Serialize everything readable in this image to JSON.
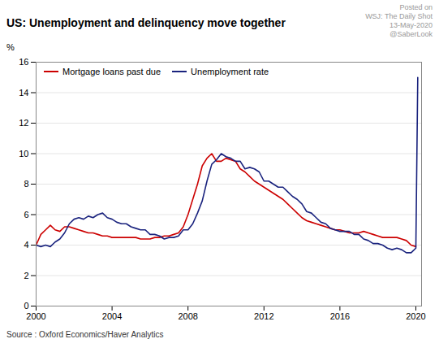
{
  "chart_data": {
    "type": "line",
    "title": "US: Unemployment and delinquency move together",
    "ylabel": "%",
    "source": "Source : Oxford Economics/Haver Analytics",
    "annotations": [
      "Posted on",
      "WSJ: The Daily Shot",
      "13-May-2020",
      "@SaberLook"
    ],
    "xlim": [
      2000,
      2020.3
    ],
    "xticks": [
      2000,
      2004,
      2008,
      2012,
      2016,
      2020
    ],
    "ylim": [
      0,
      16
    ],
    "yticks": [
      0,
      2,
      4,
      6,
      8,
      10,
      12,
      14,
      16
    ],
    "grid": true,
    "legend": "upper left",
    "series": [
      {
        "name": "Mortgage loans past due",
        "color": "#cc0000",
        "x": [
          2000.0,
          2000.25,
          2000.5,
          2000.75,
          2001.0,
          2001.25,
          2001.5,
          2001.75,
          2002.0,
          2002.25,
          2002.5,
          2002.75,
          2003.0,
          2003.25,
          2003.5,
          2003.75,
          2004.0,
          2004.25,
          2004.5,
          2004.75,
          2005.0,
          2005.25,
          2005.5,
          2005.75,
          2006.0,
          2006.25,
          2006.5,
          2006.75,
          2007.0,
          2007.25,
          2007.5,
          2007.75,
          2008.0,
          2008.25,
          2008.5,
          2008.75,
          2009.0,
          2009.25,
          2009.5,
          2009.75,
          2010.0,
          2010.25,
          2010.5,
          2010.75,
          2011.0,
          2011.25,
          2011.5,
          2011.75,
          2012.0,
          2012.25,
          2012.5,
          2012.75,
          2013.0,
          2013.25,
          2013.5,
          2013.75,
          2014.0,
          2014.25,
          2014.5,
          2014.75,
          2015.0,
          2015.25,
          2015.5,
          2015.75,
          2016.0,
          2016.25,
          2016.5,
          2016.75,
          2017.0,
          2017.25,
          2017.5,
          2017.75,
          2018.0,
          2018.25,
          2018.5,
          2018.75,
          2019.0,
          2019.25,
          2019.5,
          2019.75,
          2020.0
        ],
        "values": [
          4.0,
          4.7,
          5.0,
          5.3,
          5.0,
          4.9,
          5.2,
          5.2,
          5.1,
          5.0,
          4.9,
          4.8,
          4.8,
          4.7,
          4.6,
          4.6,
          4.5,
          4.5,
          4.5,
          4.5,
          4.5,
          4.5,
          4.4,
          4.4,
          4.4,
          4.5,
          4.5,
          4.6,
          4.6,
          4.7,
          4.8,
          5.2,
          6.0,
          7.0,
          8.0,
          9.2,
          9.7,
          10.0,
          9.5,
          9.5,
          9.7,
          9.6,
          9.5,
          9.0,
          8.8,
          8.5,
          8.2,
          8.0,
          7.8,
          7.6,
          7.4,
          7.2,
          7.0,
          6.7,
          6.4,
          6.1,
          5.8,
          5.6,
          5.5,
          5.4,
          5.3,
          5.2,
          5.1,
          5.0,
          5.0,
          4.9,
          4.8,
          4.8,
          4.8,
          4.9,
          4.8,
          4.7,
          4.6,
          4.5,
          4.5,
          4.5,
          4.5,
          4.4,
          4.3,
          4.0,
          3.9
        ]
      },
      {
        "name": "Unemployment rate",
        "color": "#1a237e",
        "x": [
          2000.0,
          2000.25,
          2000.5,
          2000.75,
          2001.0,
          2001.25,
          2001.5,
          2001.75,
          2002.0,
          2002.25,
          2002.5,
          2002.75,
          2003.0,
          2003.25,
          2003.5,
          2003.75,
          2004.0,
          2004.25,
          2004.5,
          2004.75,
          2005.0,
          2005.25,
          2005.5,
          2005.75,
          2006.0,
          2006.25,
          2006.5,
          2006.75,
          2007.0,
          2007.25,
          2007.5,
          2007.75,
          2008.0,
          2008.25,
          2008.5,
          2008.75,
          2009.0,
          2009.25,
          2009.5,
          2009.75,
          2010.0,
          2010.25,
          2010.5,
          2010.75,
          2011.0,
          2011.25,
          2011.5,
          2011.75,
          2012.0,
          2012.25,
          2012.5,
          2012.75,
          2013.0,
          2013.25,
          2013.5,
          2013.75,
          2014.0,
          2014.25,
          2014.5,
          2014.75,
          2015.0,
          2015.25,
          2015.5,
          2015.75,
          2016.0,
          2016.25,
          2016.5,
          2016.75,
          2017.0,
          2017.25,
          2017.5,
          2017.75,
          2018.0,
          2018.25,
          2018.5,
          2018.75,
          2019.0,
          2019.25,
          2019.5,
          2019.75,
          2020.0,
          2020.1
        ],
        "values": [
          4.0,
          3.9,
          4.0,
          3.9,
          4.2,
          4.4,
          4.8,
          5.4,
          5.7,
          5.8,
          5.7,
          5.9,
          5.8,
          6.0,
          6.1,
          5.8,
          5.7,
          5.5,
          5.4,
          5.4,
          5.2,
          5.1,
          5.0,
          5.0,
          4.7,
          4.7,
          4.6,
          4.4,
          4.5,
          4.5,
          4.6,
          5.0,
          5.0,
          5.4,
          6.1,
          6.9,
          8.2,
          9.3,
          9.6,
          10.0,
          9.8,
          9.7,
          9.5,
          9.5,
          9.0,
          9.1,
          9.0,
          8.8,
          8.2,
          8.2,
          8.0,
          7.8,
          7.8,
          7.5,
          7.2,
          7.0,
          6.7,
          6.2,
          6.1,
          5.8,
          5.5,
          5.4,
          5.1,
          5.0,
          4.9,
          4.9,
          4.9,
          4.7,
          4.7,
          4.4,
          4.3,
          4.1,
          4.1,
          4.0,
          3.8,
          3.7,
          3.8,
          3.7,
          3.5,
          3.5,
          3.8,
          15.0
        ]
      }
    ]
  }
}
